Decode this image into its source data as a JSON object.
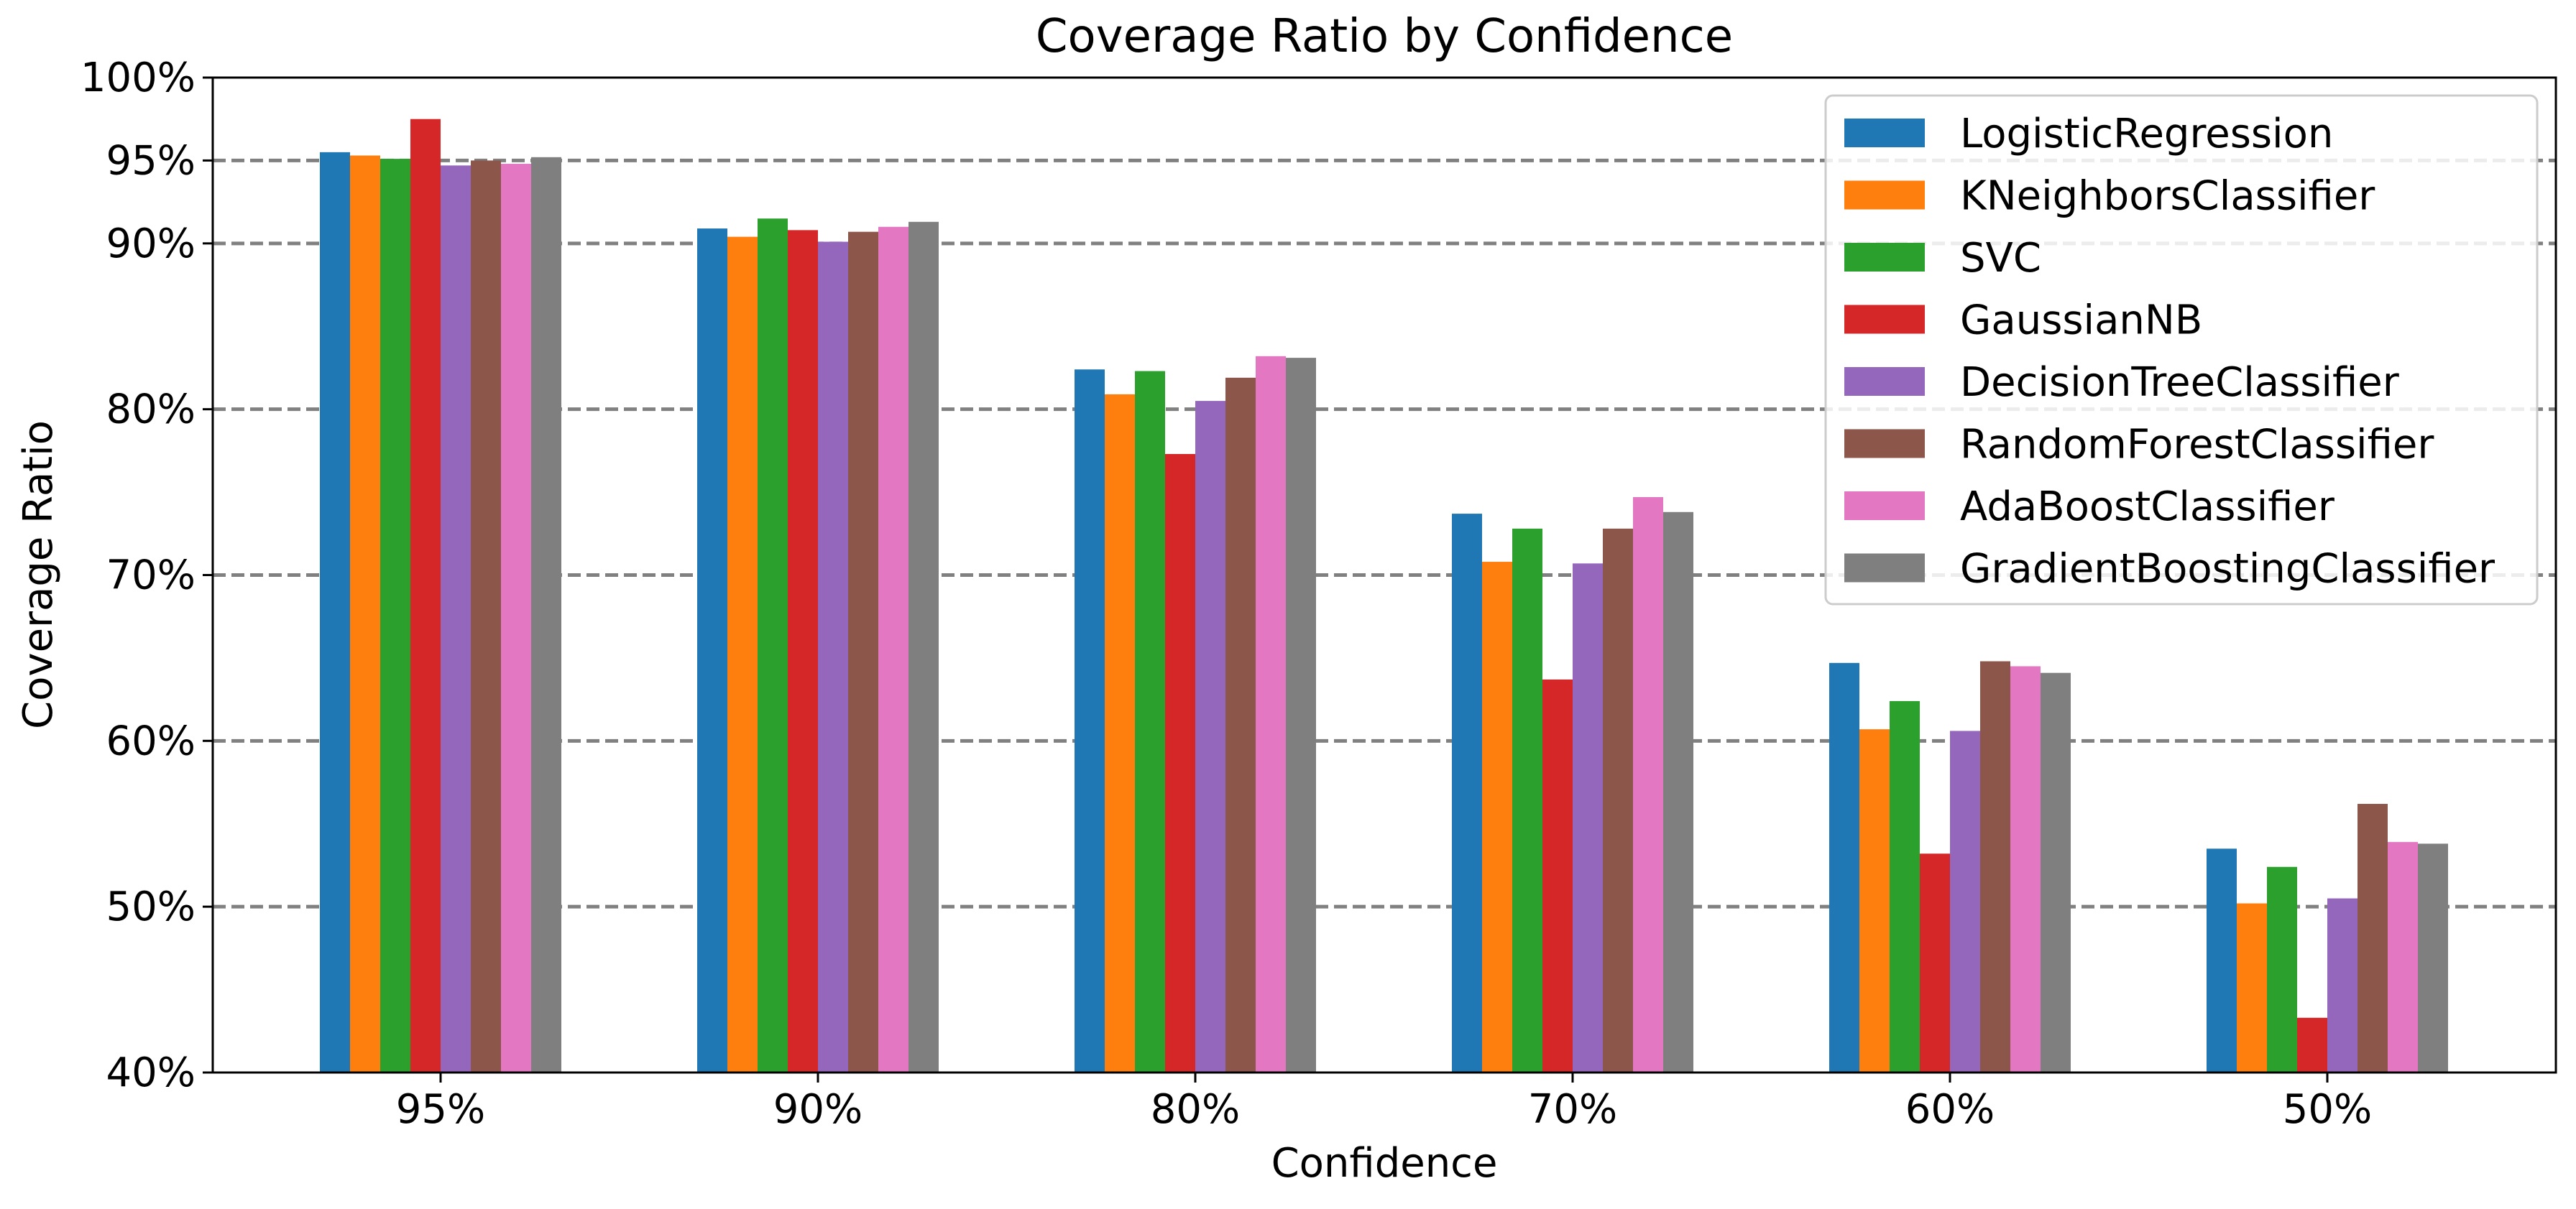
{
  "chart_data": {
    "type": "bar",
    "title": "Coverage Ratio by Confidence",
    "xlabel": "Confidence",
    "ylabel": "Coverage Ratio",
    "categories": [
      "95%",
      "90%",
      "80%",
      "70%",
      "60%",
      "50%"
    ],
    "ylim": [
      40,
      100
    ],
    "yticks": [
      40,
      50,
      60,
      70,
      80,
      90,
      95,
      100
    ],
    "ytick_labels": [
      "40%",
      "50%",
      "60%",
      "70%",
      "80%",
      "90%",
      "95%",
      "100%"
    ],
    "reference_lines": [
      50,
      60,
      70,
      80,
      90,
      95
    ],
    "legend_position": "top-right",
    "series": [
      {
        "name": "LogisticRegression",
        "color": "#1f77b4",
        "values": [
          95.5,
          90.9,
          82.4,
          73.7,
          64.7,
          53.5
        ]
      },
      {
        "name": "KNeighborsClassifier",
        "color": "#ff7f0e",
        "values": [
          95.3,
          90.4,
          80.9,
          70.8,
          60.7,
          50.2
        ]
      },
      {
        "name": "SVC",
        "color": "#2ca02c",
        "values": [
          95.1,
          91.5,
          82.3,
          72.8,
          62.4,
          52.4
        ]
      },
      {
        "name": "GaussianNB",
        "color": "#d62728",
        "values": [
          97.5,
          90.8,
          77.3,
          63.7,
          53.2,
          43.3
        ]
      },
      {
        "name": "DecisionTreeClassifier",
        "color": "#9467bd",
        "values": [
          94.7,
          90.1,
          80.5,
          70.7,
          60.6,
          50.5
        ]
      },
      {
        "name": "RandomForestClassifier",
        "color": "#8c564b",
        "values": [
          95.0,
          90.7,
          81.9,
          72.8,
          64.8,
          56.2
        ]
      },
      {
        "name": "AdaBoostClassifier",
        "color": "#e377c2",
        "values": [
          94.8,
          91.0,
          83.2,
          74.7,
          64.5,
          53.9
        ]
      },
      {
        "name": "GradientBoostingClassifier",
        "color": "#7f7f7f",
        "values": [
          95.2,
          91.3,
          83.1,
          73.8,
          64.1,
          53.8
        ]
      }
    ]
  }
}
